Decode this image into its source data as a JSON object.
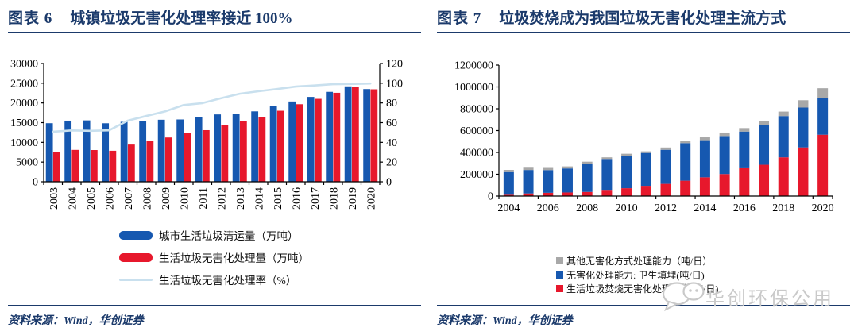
{
  "page": {
    "source_label": "资料来源：Wind，华创证券",
    "watermark": "华创环保公用",
    "colors": {
      "navy": "#1b3a6b",
      "bar_blue": "#1658b0",
      "bar_red": "#e7182c",
      "line_lightblue": "#c9e0ee",
      "bar_gray": "#a8a8a8",
      "watermark_gray": "#c9c9c9"
    }
  },
  "figure6": {
    "tag": "图表 6",
    "title": "城镇垃圾无害化处理率接近 100%"
  },
  "figure7": {
    "tag": "图表 7",
    "title": "垃圾焚烧成为我国垃圾无害化处理主流方式"
  },
  "chart_data": [
    {
      "type": "bar",
      "subtype": "grouped-bars-with-line-dual-axis",
      "title": "城镇垃圾无害化处理率接近 100%",
      "categories": [
        "2003",
        "2004",
        "2005",
        "2006",
        "2007",
        "2008",
        "2009",
        "2010",
        "2011",
        "2012",
        "2013",
        "2014",
        "2015",
        "2016",
        "2017",
        "2018",
        "2019",
        "2020"
      ],
      "series": [
        {
          "name": "城市生活垃圾清运量（万吨）",
          "type": "bar",
          "axis": "left",
          "color": "#1658b0",
          "values": [
            14857,
            15509,
            15577,
            14841,
            15215,
            15438,
            15734,
            15805,
            16395,
            17081,
            17239,
            17860,
            19142,
            20362,
            21521,
            22802,
            24206,
            23512
          ]
        },
        {
          "name": "生活垃圾无害化处理量（万吨）",
          "type": "bar",
          "axis": "left",
          "color": "#e7182c",
          "values": [
            7550,
            8089,
            8051,
            7872,
            9438,
            10307,
            11232,
            12318,
            13090,
            14490,
            15394,
            16394,
            18013,
            19674,
            21034,
            22565,
            24013,
            23452
          ]
        },
        {
          "name": "生活垃圾无害化处理率（%）",
          "type": "line",
          "axis": "right",
          "color": "#c9e0ee",
          "values": [
            50.8,
            52.1,
            51.7,
            52.2,
            62.0,
            66.8,
            71.4,
            77.9,
            79.8,
            84.8,
            89.3,
            91.8,
            94.1,
            96.6,
            97.7,
            99.0,
            99.2,
            99.7
          ]
        }
      ],
      "left_axis": {
        "min": 0,
        "max": 30000,
        "step": 5000,
        "ticks": [
          0,
          5000,
          10000,
          15000,
          20000,
          25000,
          30000
        ]
      },
      "right_axis": {
        "min": 0,
        "max": 120,
        "step": 20,
        "ticks": [
          0,
          20,
          40,
          60,
          80,
          100,
          120
        ]
      },
      "grid": false,
      "legend_position": "bottom"
    },
    {
      "type": "bar",
      "subtype": "stacked",
      "title": "垃圾焚烧成为我国垃圾无害化处理主流方式",
      "categories": [
        "2004",
        "2005",
        "2006",
        "2007",
        "2008",
        "2009",
        "2010",
        "2011",
        "2012",
        "2013",
        "2014",
        "2015",
        "2016",
        "2017",
        "2018",
        "2019",
        "2020"
      ],
      "series": [
        {
          "name": "生活垃圾焚烧无害化处理能力(吨/日)",
          "color": "#e7182c",
          "values": [
            12000,
            24000,
            30000,
            33000,
            38000,
            57000,
            72000,
            94000,
            112000,
            141000,
            172000,
            202000,
            255000,
            287000,
            355000,
            446000,
            562000
          ]
        },
        {
          "name": "无害化处理能力: 卫生填埋(吨/日)",
          "color": "#1658b0",
          "values": [
            208000,
            215000,
            208000,
            220000,
            258000,
            283000,
            298000,
            301000,
            312000,
            344000,
            340000,
            348000,
            336000,
            361000,
            378000,
            365000,
            334000
          ]
        },
        {
          "name": "其他无害化方式处理能力（吨/日）",
          "color": "#a8a8a8",
          "values": [
            20000,
            21000,
            20000,
            19000,
            19000,
            15000,
            18000,
            15000,
            21000,
            20000,
            26000,
            32000,
            32000,
            43000,
            41000,
            67000,
            92000
          ]
        }
      ],
      "y_axis": {
        "min": 0,
        "max": 1200000,
        "step": 200000,
        "ticks": [
          0,
          200000,
          400000,
          600000,
          800000,
          1000000,
          1200000
        ]
      },
      "x_tick_labels": [
        "2004",
        "2006",
        "2008",
        "2010",
        "2012",
        "2014",
        "2016",
        "2018",
        "2020"
      ],
      "grid": false,
      "legend_position": "bottom-right",
      "legend_display_order": [
        "其他无害化方式处理能力（吨/日）",
        "无害化处理能力: 卫生填埋(吨/日)",
        "生活垃圾焚烧无害化处理能力(吨/日)"
      ]
    }
  ]
}
